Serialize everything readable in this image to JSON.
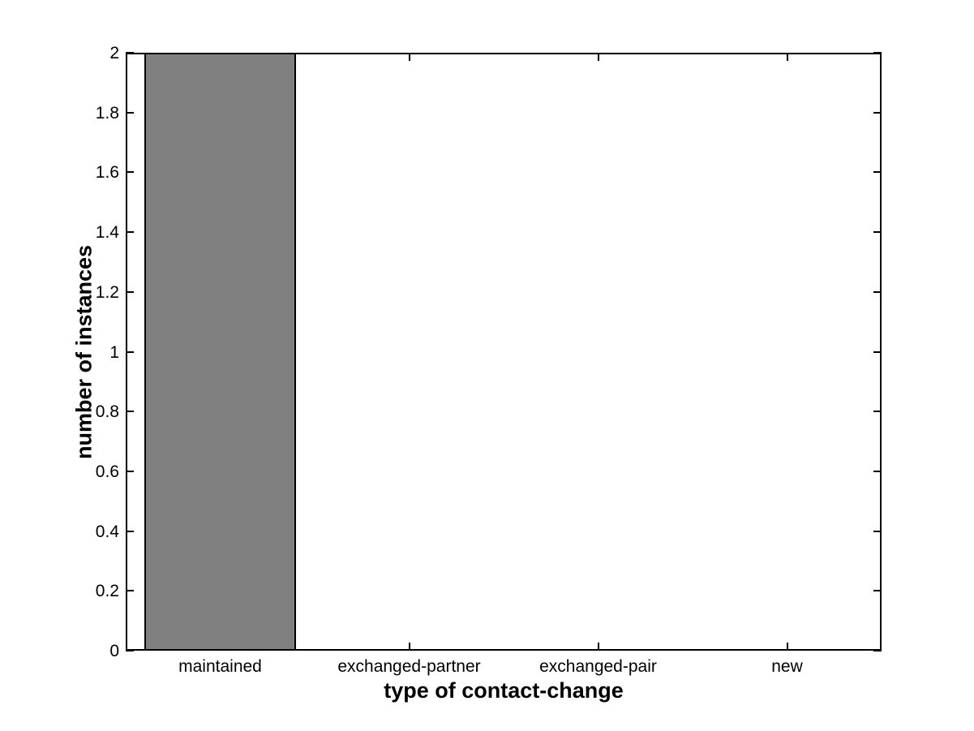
{
  "chart_data": {
    "type": "bar",
    "title": "",
    "xlabel": "type of contact-change",
    "ylabel": "number of instances",
    "categories": [
      "maintained",
      "exchanged-partner",
      "exchanged-pair",
      "new"
    ],
    "values": [
      2,
      0,
      0,
      0
    ],
    "ylim": [
      0,
      2
    ],
    "ytick_step": 0.2,
    "ytick_labels": [
      "0",
      "0.2",
      "0.4",
      "0.6",
      "0.8",
      "1",
      "1.2",
      "1.4",
      "1.6",
      "1.8",
      "2"
    ],
    "bar_width_fraction": 0.8,
    "bar_color": "#808080",
    "bar_edge_color": "#000000",
    "axis_color": "#000000",
    "background": "#ffffff",
    "grid": false,
    "legend": null,
    "tick_direction": "in",
    "box": true
  }
}
